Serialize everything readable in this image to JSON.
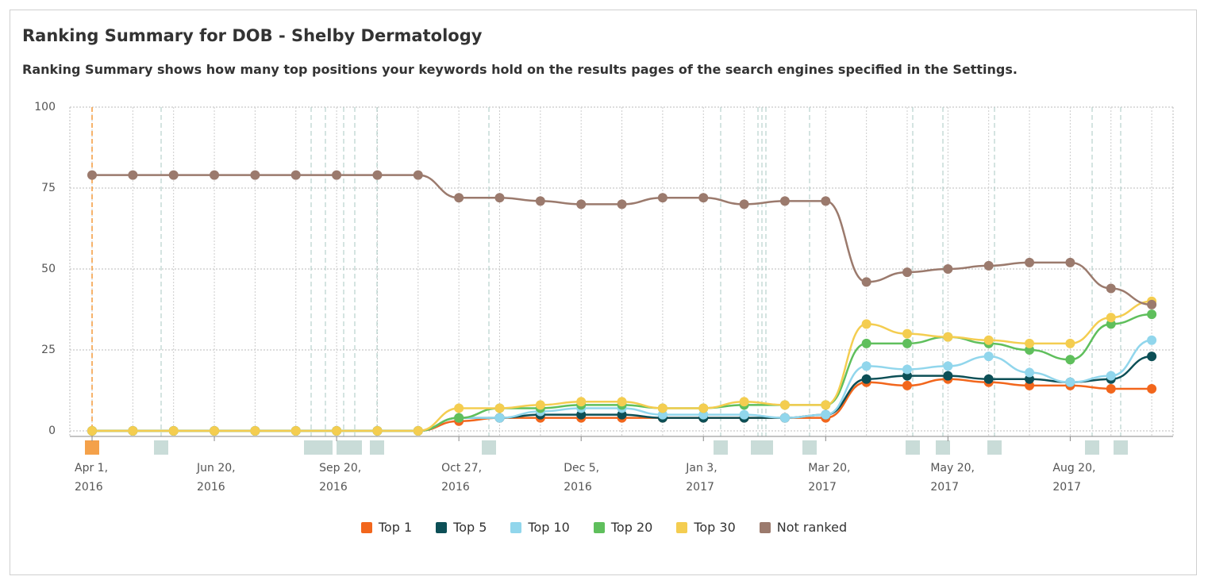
{
  "header": {
    "title": "Ranking Summary for DOB - Shelby Dermatology",
    "subtitle": "Ranking Summary shows how many top positions your keywords hold on the results pages of the search engines specified in the Settings."
  },
  "chart_data": {
    "type": "line",
    "categories": [
      "Apr 1,\n2016",
      null,
      null,
      "Jun 20,\n2016",
      null,
      null,
      "Sep 20,\n2016",
      null,
      null,
      "Oct 27,\n2016",
      null,
      null,
      "Dec 5,\n2016",
      null,
      null,
      "Jan 3,\n2017",
      null,
      null,
      "Mar 20,\n2017",
      null,
      null,
      "May 20,\n2017",
      null,
      null,
      "Aug 20,\n2017",
      null,
      null
    ],
    "ylim": [
      0,
      100
    ],
    "yticks": [
      0,
      25,
      50,
      75,
      100
    ],
    "grid": true,
    "series": [
      {
        "name": "Top 1",
        "color": "#f2661c",
        "values": [
          0,
          0,
          0,
          0,
          0,
          0,
          0,
          0,
          0,
          3,
          4,
          4,
          4,
          4,
          4,
          4,
          4,
          4,
          4,
          15,
          14,
          16,
          15,
          14,
          14,
          13,
          13
        ]
      },
      {
        "name": "Top 5",
        "color": "#0c4f56",
        "values": [
          0,
          0,
          0,
          0,
          0,
          0,
          0,
          0,
          0,
          4,
          4,
          5,
          5,
          5,
          4,
          4,
          4,
          4,
          5,
          16,
          17,
          17,
          16,
          16,
          15,
          16,
          23
        ]
      },
      {
        "name": "Top 10",
        "color": "#91d6ec",
        "values": [
          0,
          0,
          0,
          0,
          0,
          0,
          0,
          0,
          0,
          4,
          4,
          6,
          7,
          7,
          5,
          5,
          5,
          4,
          5,
          20,
          19,
          20,
          23,
          18,
          15,
          17,
          28
        ]
      },
      {
        "name": "Top 20",
        "color": "#5fbf5c",
        "values": [
          0,
          0,
          0,
          0,
          0,
          0,
          0,
          0,
          0,
          4,
          7,
          7,
          8,
          8,
          7,
          7,
          8,
          8,
          8,
          27,
          27,
          29,
          27,
          25,
          22,
          33,
          36
        ]
      },
      {
        "name": "Top 30",
        "color": "#f4cd50",
        "values": [
          0,
          0,
          0,
          0,
          0,
          0,
          0,
          0,
          0,
          7,
          7,
          8,
          9,
          9,
          7,
          7,
          9,
          8,
          8,
          33,
          30,
          29,
          28,
          27,
          27,
          35,
          40
        ]
      },
      {
        "name": "Not ranked",
        "color": "#9b7a6d",
        "values": [
          79,
          79,
          79,
          79,
          79,
          79,
          79,
          79,
          79,
          72,
          72,
          71,
          70,
          70,
          72,
          72,
          70,
          71,
          71,
          46,
          49,
          50,
          51,
          52,
          52,
          44,
          39
        ]
      }
    ]
  }
}
